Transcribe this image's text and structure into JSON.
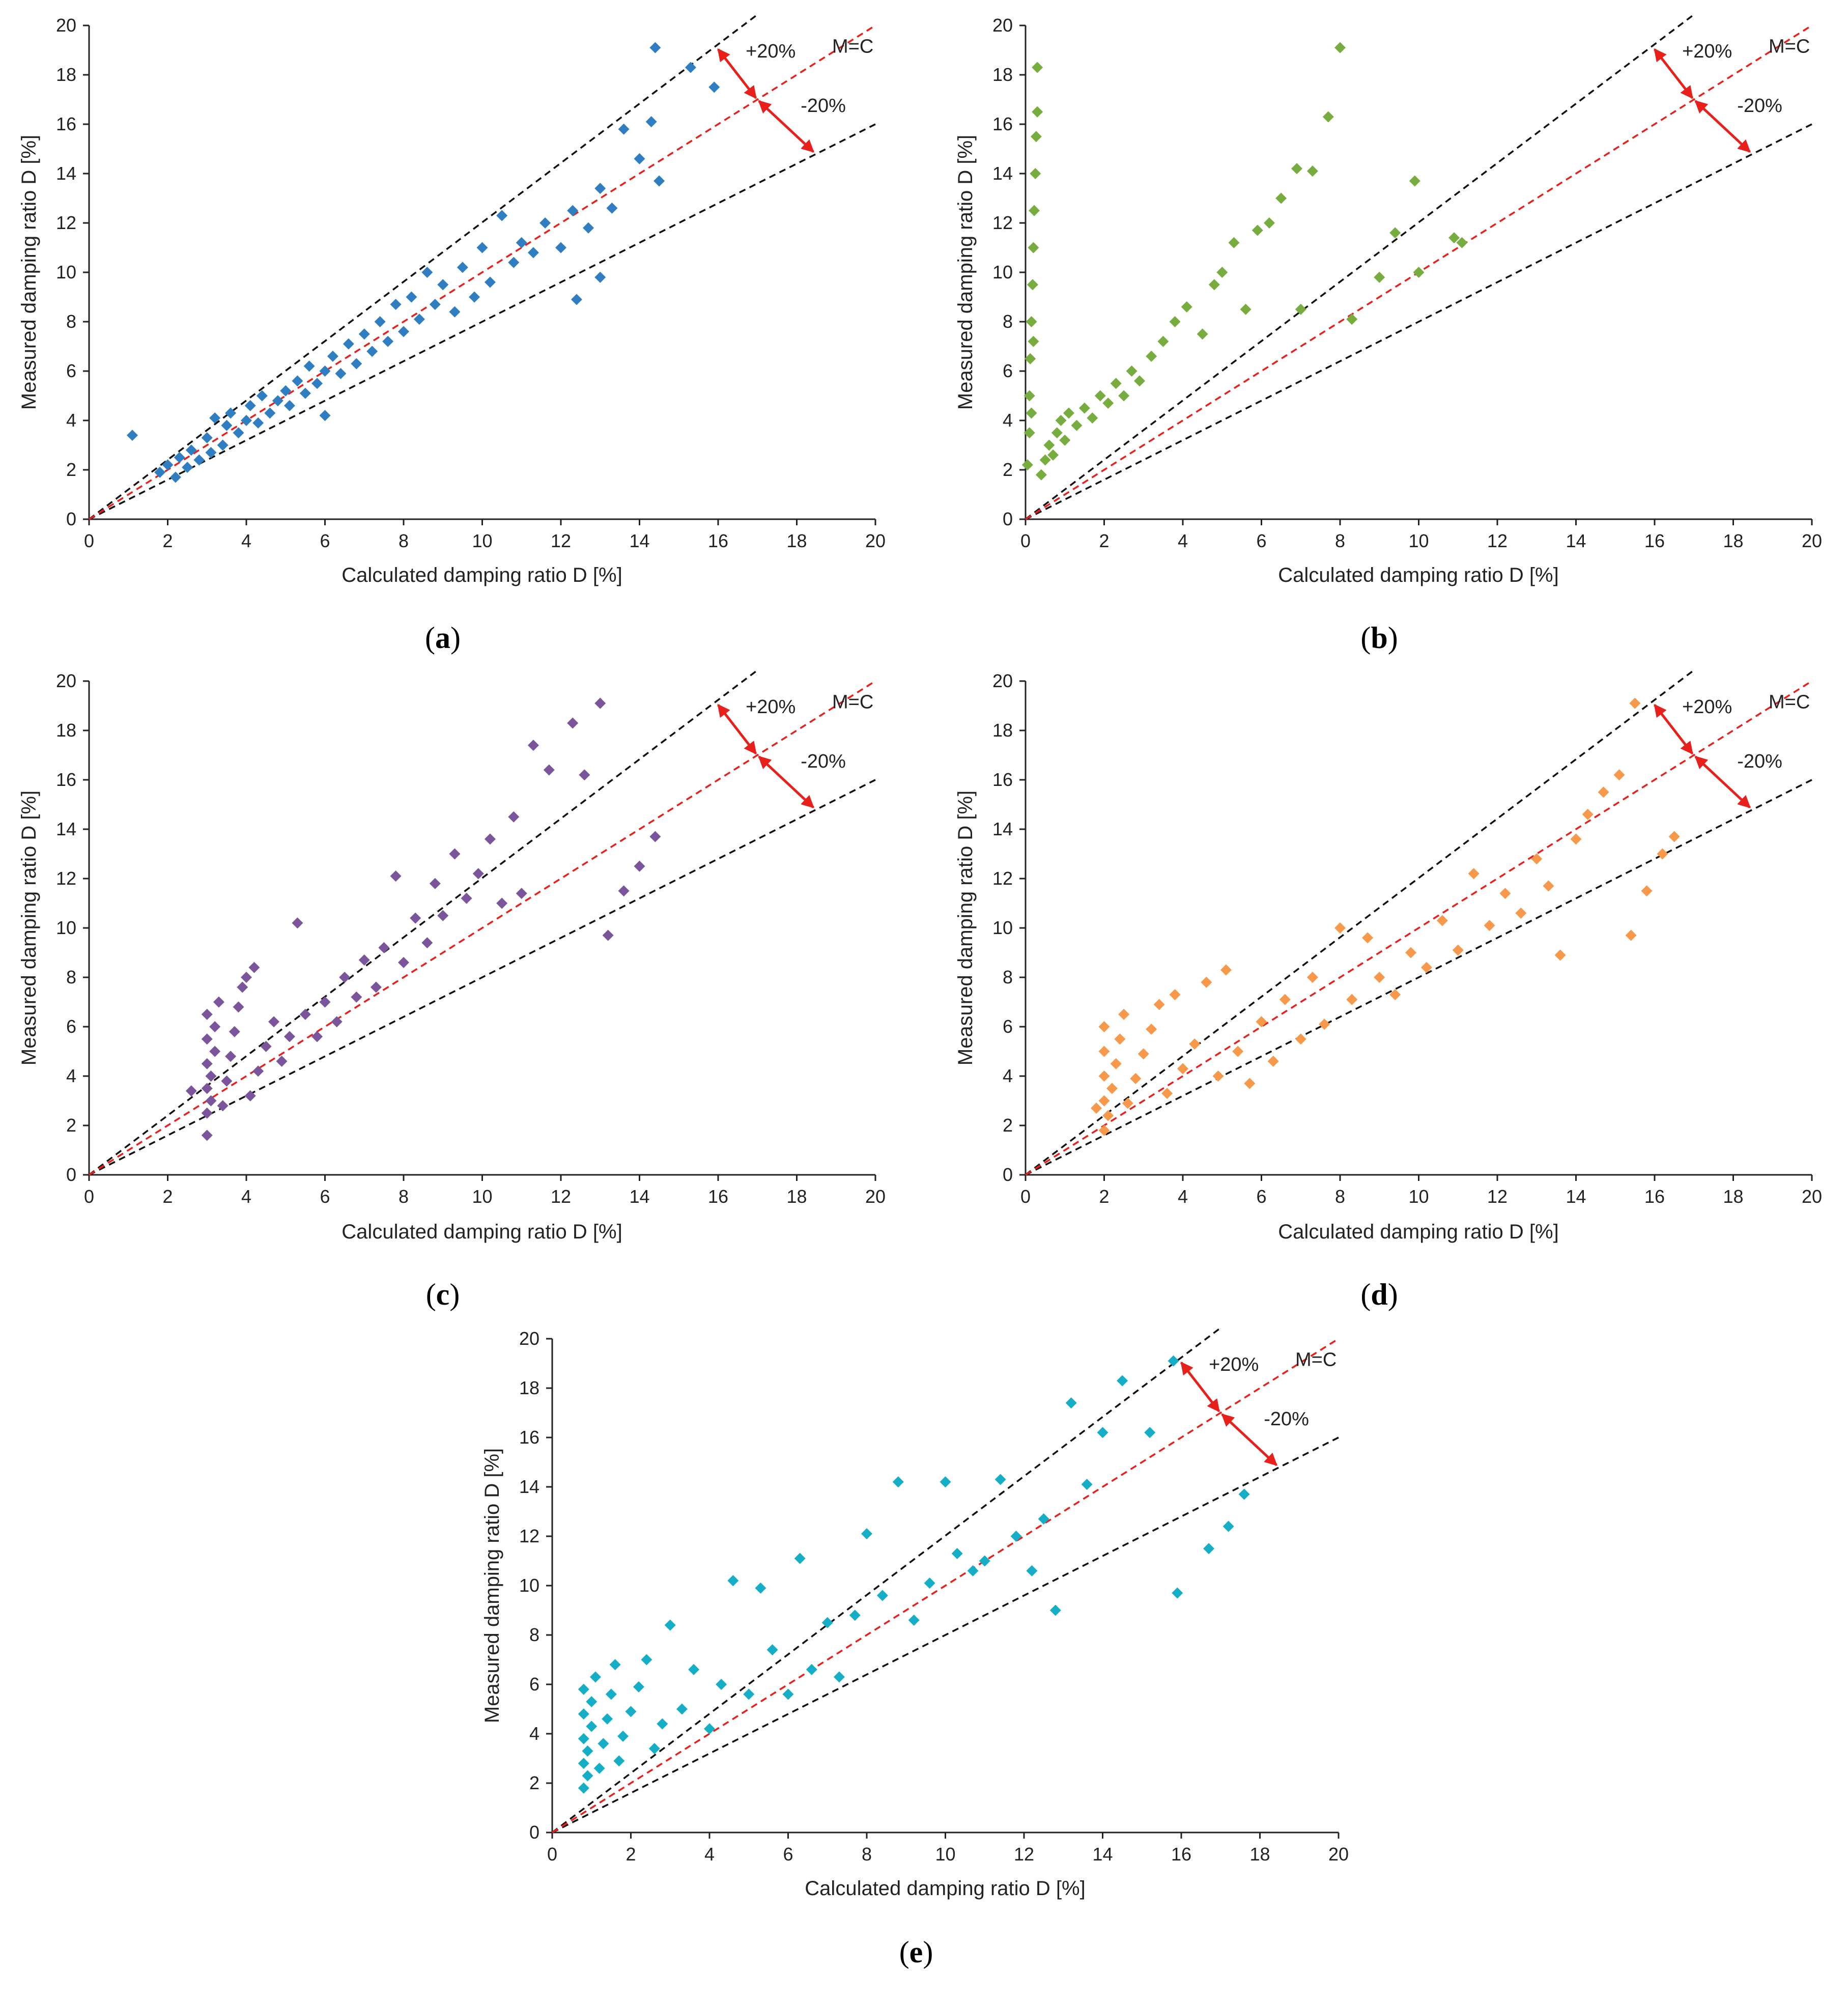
{
  "figure": {
    "annotations": {
      "plus": "+20%",
      "minus": "-20%",
      "equal": "M=C"
    },
    "colors": {
      "bound": "#111111",
      "equal": "#e8201b",
      "arrow": "#e8201b"
    }
  },
  "chart_data": [
    {
      "id": "a",
      "panel_label": "a",
      "type": "scatter",
      "color": "#2f7ec1",
      "xlabel": "Calculated damping ratio D [%]",
      "ylabel": "Measured damping ratio D [%]",
      "xlim": [
        0,
        20
      ],
      "ylim": [
        0,
        20
      ],
      "xticks": [
        "0",
        "2",
        "4",
        "6",
        "8",
        "10",
        "12",
        "14",
        "16",
        "18",
        "20"
      ],
      "yticks": [
        "0",
        "2",
        "4",
        "6",
        "8",
        "10",
        "12",
        "14",
        "16",
        "18",
        "20"
      ],
      "reference_lines": {
        "equal_slope": 1.0,
        "upper_slope": 1.2,
        "lower_slope": 0.8
      },
      "points": [
        [
          1.1,
          3.4
        ],
        [
          1.8,
          1.9
        ],
        [
          2.0,
          2.2
        ],
        [
          2.2,
          1.7
        ],
        [
          2.3,
          2.5
        ],
        [
          2.5,
          2.1
        ],
        [
          2.6,
          2.8
        ],
        [
          2.8,
          2.4
        ],
        [
          3.0,
          3.3
        ],
        [
          3.1,
          2.7
        ],
        [
          3.2,
          4.1
        ],
        [
          3.4,
          3.0
        ],
        [
          3.5,
          3.8
        ],
        [
          3.6,
          4.3
        ],
        [
          3.8,
          3.5
        ],
        [
          4.0,
          4.0
        ],
        [
          4.1,
          4.6
        ],
        [
          4.3,
          3.9
        ],
        [
          4.4,
          5.0
        ],
        [
          4.6,
          4.3
        ],
        [
          4.8,
          4.8
        ],
        [
          5.0,
          5.2
        ],
        [
          5.1,
          4.6
        ],
        [
          5.3,
          5.6
        ],
        [
          5.5,
          5.1
        ],
        [
          5.6,
          6.2
        ],
        [
          5.8,
          5.5
        ],
        [
          6.0,
          4.2
        ],
        [
          6.0,
          6.0
        ],
        [
          6.2,
          6.6
        ],
        [
          6.4,
          5.9
        ],
        [
          6.6,
          7.1
        ],
        [
          6.8,
          6.3
        ],
        [
          7.0,
          7.5
        ],
        [
          7.2,
          6.8
        ],
        [
          7.4,
          8.0
        ],
        [
          7.6,
          7.2
        ],
        [
          7.8,
          8.7
        ],
        [
          8.0,
          7.6
        ],
        [
          8.2,
          9.0
        ],
        [
          8.4,
          8.1
        ],
        [
          8.6,
          10.0
        ],
        [
          8.8,
          8.7
        ],
        [
          9.0,
          9.5
        ],
        [
          9.3,
          8.4
        ],
        [
          9.5,
          10.2
        ],
        [
          9.8,
          9.0
        ],
        [
          10.0,
          11.0
        ],
        [
          10.2,
          9.6
        ],
        [
          10.5,
          12.3
        ],
        [
          10.8,
          10.4
        ],
        [
          11.0,
          11.2
        ],
        [
          11.3,
          10.8
        ],
        [
          11.6,
          12.0
        ],
        [
          12.0,
          11.0
        ],
        [
          12.3,
          12.5
        ],
        [
          12.4,
          8.9
        ],
        [
          12.7,
          11.8
        ],
        [
          13.0,
          9.8
        ],
        [
          13.0,
          13.4
        ],
        [
          13.3,
          12.6
        ],
        [
          13.6,
          15.8
        ],
        [
          14.0,
          14.6
        ],
        [
          14.3,
          16.1
        ],
        [
          14.5,
          13.7
        ],
        [
          14.4,
          19.1
        ],
        [
          15.3,
          18.3
        ],
        [
          15.9,
          17.5
        ]
      ]
    },
    {
      "id": "b",
      "panel_label": "b",
      "type": "scatter",
      "color": "#77ad3f",
      "xlabel": "Calculated damping ratio D [%]",
      "ylabel": "Measured damping ratio D [%]",
      "xlim": [
        0,
        20
      ],
      "ylim": [
        0,
        20
      ],
      "xticks": [
        "0",
        "2",
        "4",
        "6",
        "8",
        "10",
        "12",
        "14",
        "16",
        "18",
        "20"
      ],
      "yticks": [
        "0",
        "2",
        "4",
        "6",
        "8",
        "10",
        "12",
        "14",
        "16",
        "18",
        "20"
      ],
      "reference_lines": {
        "equal_slope": 1.0,
        "upper_slope": 1.2,
        "lower_slope": 0.8
      },
      "points": [
        [
          0.05,
          2.2
        ],
        [
          0.1,
          3.5
        ],
        [
          0.1,
          5.0
        ],
        [
          0.12,
          6.5
        ],
        [
          0.15,
          8.0
        ],
        [
          0.18,
          9.5
        ],
        [
          0.2,
          11.0
        ],
        [
          0.22,
          12.5
        ],
        [
          0.25,
          14.0
        ],
        [
          0.27,
          15.5
        ],
        [
          0.3,
          16.5
        ],
        [
          0.3,
          18.3
        ],
        [
          0.2,
          7.2
        ],
        [
          0.15,
          4.3
        ],
        [
          0.4,
          1.8
        ],
        [
          0.5,
          2.4
        ],
        [
          0.6,
          3.0
        ],
        [
          0.7,
          2.6
        ],
        [
          0.8,
          3.5
        ],
        [
          0.9,
          4.0
        ],
        [
          1.0,
          3.2
        ],
        [
          1.1,
          4.3
        ],
        [
          1.3,
          3.8
        ],
        [
          1.5,
          4.5
        ],
        [
          1.7,
          4.1
        ],
        [
          1.9,
          5.0
        ],
        [
          2.1,
          4.7
        ],
        [
          2.3,
          5.5
        ],
        [
          2.5,
          5.0
        ],
        [
          2.7,
          6.0
        ],
        [
          2.9,
          5.6
        ],
        [
          3.2,
          6.6
        ],
        [
          3.5,
          7.2
        ],
        [
          3.8,
          8.0
        ],
        [
          4.1,
          8.6
        ],
        [
          4.5,
          7.5
        ],
        [
          4.8,
          9.5
        ],
        [
          5.0,
          10.0
        ],
        [
          5.3,
          11.2
        ],
        [
          5.6,
          8.5
        ],
        [
          5.9,
          11.7
        ],
        [
          6.2,
          12.0
        ],
        [
          6.5,
          13.0
        ],
        [
          6.9,
          14.2
        ],
        [
          7.3,
          14.1
        ],
        [
          7.7,
          16.3
        ],
        [
          8.0,
          19.1
        ],
        [
          7.0,
          8.5
        ],
        [
          8.3,
          8.1
        ],
        [
          9.0,
          9.8
        ],
        [
          9.4,
          11.6
        ],
        [
          9.9,
          13.7
        ],
        [
          10.0,
          10.0
        ],
        [
          10.9,
          11.4
        ],
        [
          11.1,
          11.2
        ]
      ]
    },
    {
      "id": "c",
      "panel_label": "c",
      "type": "scatter",
      "color": "#7b559b",
      "xlabel": "Calculated damping ratio D [%]",
      "ylabel": "Measured damping ratio D [%]",
      "xlim": [
        0,
        20
      ],
      "ylim": [
        0,
        20
      ],
      "xticks": [
        "0",
        "2",
        "4",
        "6",
        "8",
        "10",
        "12",
        "14",
        "16",
        "18",
        "20"
      ],
      "yticks": [
        "0",
        "2",
        "4",
        "6",
        "8",
        "10",
        "12",
        "14",
        "16",
        "18",
        "20"
      ],
      "reference_lines": {
        "equal_slope": 1.0,
        "upper_slope": 1.2,
        "lower_slope": 0.8
      },
      "points": [
        [
          2.6,
          3.4
        ],
        [
          3.0,
          1.6
        ],
        [
          3.0,
          2.5
        ],
        [
          3.0,
          3.5
        ],
        [
          3.0,
          4.5
        ],
        [
          3.0,
          5.5
        ],
        [
          3.0,
          6.5
        ],
        [
          3.1,
          3.0
        ],
        [
          3.1,
          4.0
        ],
        [
          3.2,
          5.0
        ],
        [
          3.2,
          6.0
        ],
        [
          3.3,
          7.0
        ],
        [
          3.4,
          2.8
        ],
        [
          3.5,
          3.8
        ],
        [
          3.6,
          4.8
        ],
        [
          3.7,
          5.8
        ],
        [
          3.8,
          6.8
        ],
        [
          3.9,
          7.6
        ],
        [
          4.0,
          8.0
        ],
        [
          4.1,
          3.2
        ],
        [
          4.2,
          8.4
        ],
        [
          4.3,
          4.2
        ],
        [
          4.5,
          5.2
        ],
        [
          4.7,
          6.2
        ],
        [
          4.9,
          4.6
        ],
        [
          5.1,
          5.6
        ],
        [
          5.3,
          10.2
        ],
        [
          5.5,
          6.5
        ],
        [
          5.8,
          5.6
        ],
        [
          6.0,
          7.0
        ],
        [
          6.3,
          6.2
        ],
        [
          6.5,
          8.0
        ],
        [
          6.8,
          7.2
        ],
        [
          7.0,
          8.7
        ],
        [
          7.3,
          7.6
        ],
        [
          7.5,
          9.2
        ],
        [
          7.8,
          12.1
        ],
        [
          8.0,
          8.6
        ],
        [
          8.3,
          10.4
        ],
        [
          8.6,
          9.4
        ],
        [
          8.8,
          11.8
        ],
        [
          9.0,
          10.5
        ],
        [
          9.3,
          13.0
        ],
        [
          9.6,
          11.2
        ],
        [
          9.9,
          12.2
        ],
        [
          10.2,
          13.6
        ],
        [
          10.5,
          11.0
        ],
        [
          10.8,
          14.5
        ],
        [
          11.0,
          11.4
        ],
        [
          11.3,
          17.4
        ],
        [
          11.7,
          16.4
        ],
        [
          12.3,
          18.3
        ],
        [
          12.6,
          16.2
        ],
        [
          13.0,
          19.1
        ],
        [
          13.2,
          9.7
        ],
        [
          13.6,
          11.5
        ],
        [
          14.0,
          12.5
        ],
        [
          14.4,
          13.7
        ]
      ]
    },
    {
      "id": "d",
      "panel_label": "d",
      "type": "scatter",
      "color": "#f7984a",
      "xlabel": "Calculated damping ratio D [%]",
      "ylabel": "Measured damping ratio D [%]",
      "xlim": [
        0,
        20
      ],
      "ylim": [
        0,
        20
      ],
      "xticks": [
        "0",
        "2",
        "4",
        "6",
        "8",
        "10",
        "12",
        "14",
        "16",
        "18",
        "20"
      ],
      "yticks": [
        "0",
        "2",
        "4",
        "6",
        "8",
        "10",
        "12",
        "14",
        "16",
        "18",
        "20"
      ],
      "reference_lines": {
        "equal_slope": 1.0,
        "upper_slope": 1.2,
        "lower_slope": 0.8
      },
      "points": [
        [
          1.8,
          2.7
        ],
        [
          2.0,
          1.8
        ],
        [
          2.0,
          3.0
        ],
        [
          2.0,
          4.0
        ],
        [
          2.0,
          5.0
        ],
        [
          2.0,
          6.0
        ],
        [
          2.1,
          2.4
        ],
        [
          2.2,
          3.5
        ],
        [
          2.3,
          4.5
        ],
        [
          2.4,
          5.5
        ],
        [
          2.5,
          6.5
        ],
        [
          2.6,
          2.9
        ],
        [
          2.8,
          3.9
        ],
        [
          3.0,
          4.9
        ],
        [
          3.2,
          5.9
        ],
        [
          3.4,
          6.9
        ],
        [
          3.6,
          3.3
        ],
        [
          3.8,
          7.3
        ],
        [
          4.0,
          4.3
        ],
        [
          4.3,
          5.3
        ],
        [
          4.6,
          7.8
        ],
        [
          4.9,
          4.0
        ],
        [
          5.1,
          8.3
        ],
        [
          5.4,
          5.0
        ],
        [
          5.7,
          3.7
        ],
        [
          6.0,
          6.2
        ],
        [
          6.3,
          4.6
        ],
        [
          6.6,
          7.1
        ],
        [
          7.0,
          5.5
        ],
        [
          7.3,
          8.0
        ],
        [
          7.6,
          6.1
        ],
        [
          8.0,
          10.0
        ],
        [
          8.3,
          7.1
        ],
        [
          8.7,
          9.6
        ],
        [
          9.0,
          8.0
        ],
        [
          9.4,
          7.3
        ],
        [
          9.8,
          9.0
        ],
        [
          10.2,
          8.4
        ],
        [
          10.6,
          10.3
        ],
        [
          11.0,
          9.1
        ],
        [
          11.4,
          12.2
        ],
        [
          11.8,
          10.1
        ],
        [
          12.2,
          11.4
        ],
        [
          12.6,
          10.6
        ],
        [
          13.0,
          12.8
        ],
        [
          13.3,
          11.7
        ],
        [
          13.6,
          8.9
        ],
        [
          14.0,
          13.6
        ],
        [
          14.3,
          14.6
        ],
        [
          14.7,
          15.5
        ],
        [
          15.1,
          16.2
        ],
        [
          15.5,
          19.1
        ],
        [
          15.4,
          9.7
        ],
        [
          15.8,
          11.5
        ],
        [
          16.2,
          13.0
        ],
        [
          16.5,
          13.7
        ]
      ]
    },
    {
      "id": "e",
      "panel_label": "e",
      "type": "scatter",
      "color": "#14aec6",
      "xlabel": "Calculated damping ratio D [%]",
      "ylabel": "Measured damping ratio D [%]",
      "xlim": [
        0,
        20
      ],
      "ylim": [
        0,
        20
      ],
      "xticks": [
        "0",
        "2",
        "4",
        "6",
        "8",
        "10",
        "12",
        "14",
        "16",
        "18",
        "20"
      ],
      "yticks": [
        "0",
        "2",
        "4",
        "6",
        "8",
        "10",
        "12",
        "14",
        "16",
        "18",
        "20"
      ],
      "reference_lines": {
        "equal_slope": 1.0,
        "upper_slope": 1.2,
        "lower_slope": 0.8
      },
      "points": [
        [
          0.8,
          1.8
        ],
        [
          0.8,
          2.8
        ],
        [
          0.8,
          3.8
        ],
        [
          0.8,
          4.8
        ],
        [
          0.8,
          5.8
        ],
        [
          0.9,
          2.3
        ],
        [
          0.9,
          3.3
        ],
        [
          1.0,
          4.3
        ],
        [
          1.0,
          5.3
        ],
        [
          1.1,
          6.3
        ],
        [
          1.2,
          2.6
        ],
        [
          1.3,
          3.6
        ],
        [
          1.4,
          4.6
        ],
        [
          1.5,
          5.6
        ],
        [
          1.6,
          6.8
        ],
        [
          1.7,
          2.9
        ],
        [
          1.8,
          3.9
        ],
        [
          2.0,
          4.9
        ],
        [
          2.2,
          5.9
        ],
        [
          2.4,
          7.0
        ],
        [
          2.6,
          3.4
        ],
        [
          2.8,
          4.4
        ],
        [
          3.0,
          8.4
        ],
        [
          3.3,
          5.0
        ],
        [
          3.6,
          6.6
        ],
        [
          4.0,
          4.2
        ],
        [
          4.3,
          6.0
        ],
        [
          4.6,
          10.2
        ],
        [
          5.0,
          5.6
        ],
        [
          5.3,
          9.9
        ],
        [
          5.6,
          7.4
        ],
        [
          6.0,
          5.6
        ],
        [
          6.3,
          11.1
        ],
        [
          6.6,
          6.6
        ],
        [
          7.0,
          8.5
        ],
        [
          7.3,
          6.3
        ],
        [
          7.7,
          8.8
        ],
        [
          8.0,
          12.1
        ],
        [
          8.4,
          9.6
        ],
        [
          8.8,
          14.2
        ],
        [
          9.2,
          8.6
        ],
        [
          9.6,
          10.1
        ],
        [
          10.0,
          14.2
        ],
        [
          10.3,
          11.3
        ],
        [
          10.7,
          10.6
        ],
        [
          11.0,
          11.0
        ],
        [
          11.4,
          14.3
        ],
        [
          11.8,
          12.0
        ],
        [
          12.2,
          10.6
        ],
        [
          12.5,
          12.7
        ],
        [
          12.8,
          9.0
        ],
        [
          13.2,
          17.4
        ],
        [
          13.6,
          14.1
        ],
        [
          14.0,
          16.2
        ],
        [
          14.5,
          18.3
        ],
        [
          15.2,
          16.2
        ],
        [
          15.8,
          19.1
        ],
        [
          15.9,
          9.7
        ],
        [
          16.7,
          11.5
        ],
        [
          17.2,
          12.4
        ],
        [
          17.6,
          13.7
        ]
      ]
    }
  ]
}
